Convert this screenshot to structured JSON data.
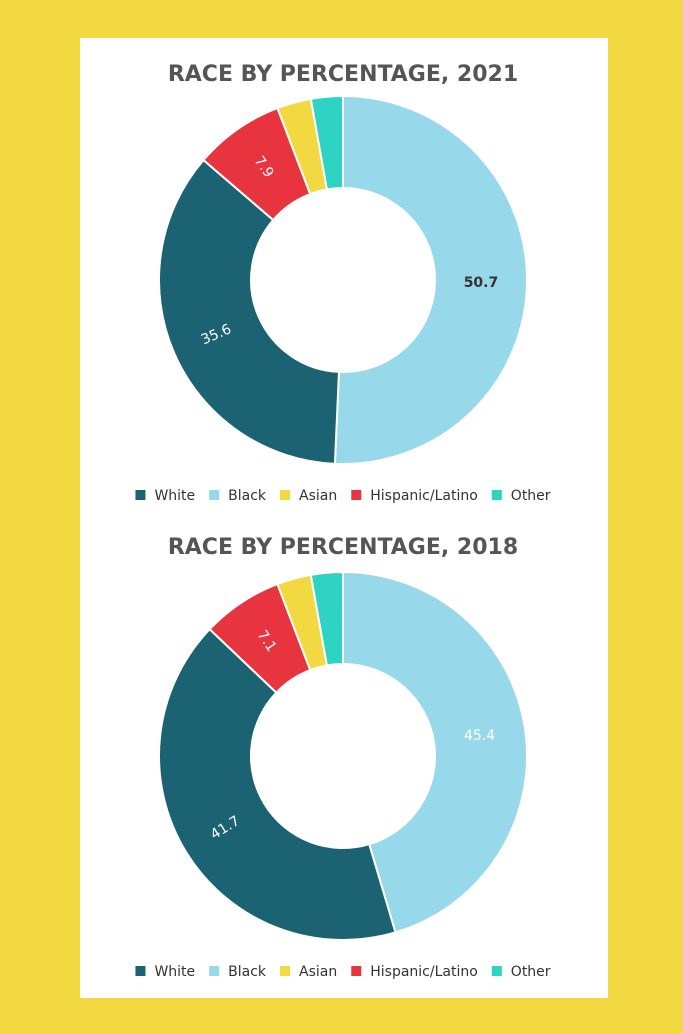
{
  "chart_data": [
    {
      "type": "donut",
      "title": "RACE BY PERCENTAGE, 2021",
      "categories": [
        "White",
        "Black",
        "Asian",
        "Hispanic/Latino",
        "Other"
      ],
      "values": [
        35.6,
        50.7,
        3.0,
        7.9,
        2.8
      ],
      "value_labels": [
        "35.6",
        "50.7",
        null,
        "7.9",
        null
      ],
      "colors": [
        "#1b6272",
        "#97d8ea",
        "#f2d841",
        "#e8343f",
        "#2ed3c3"
      ],
      "label_colors": [
        "#ffffff",
        "#333333",
        "#333333",
        "#ffffff",
        "#333333"
      ]
    },
    {
      "type": "donut",
      "title": "RACE BY PERCENTAGE, 2018",
      "categories": [
        "White",
        "Black",
        "Asian",
        "Hispanic/Latino",
        "Other"
      ],
      "values": [
        41.7,
        45.4,
        3.0,
        7.1,
        2.8
      ],
      "value_labels": [
        "41.7",
        "45.4",
        null,
        "7.1",
        null
      ],
      "colors": [
        "#1b6272",
        "#97d8ea",
        "#f2d841",
        "#e8343f",
        "#2ed3c3"
      ],
      "label_colors": [
        "#ffffff",
        "#ffffff",
        "#333333",
        "#ffffff",
        "#333333"
      ]
    }
  ]
}
